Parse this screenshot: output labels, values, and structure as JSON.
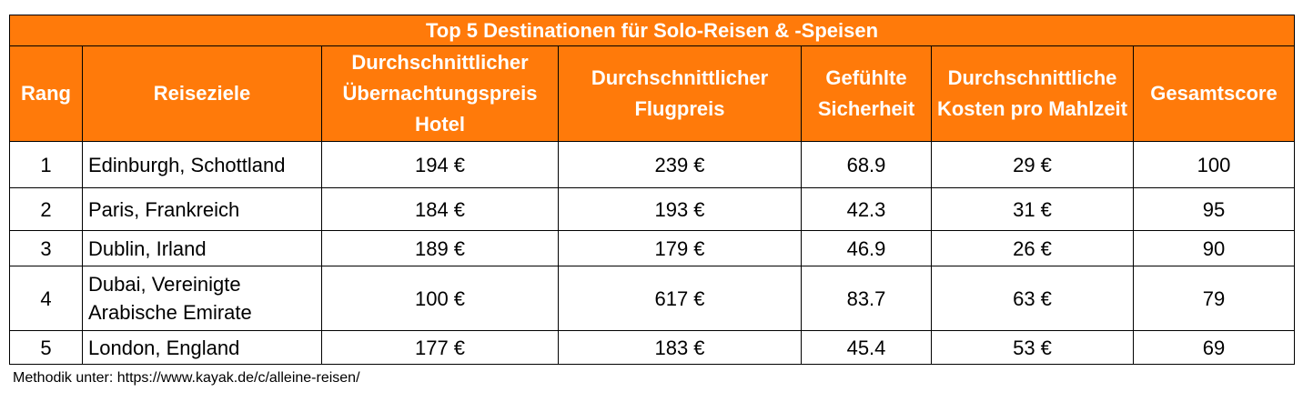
{
  "chart_data": {
    "type": "table",
    "title": "Top 5 Destinationen für Solo-Reisen & -Speisen",
    "columns": [
      "Rang",
      "Reiseziele",
      "Durchschnittlicher Übernachtungspreis Hotel",
      "Durchschnittlicher Flugpreis",
      "Gefühlte Sicherheit",
      "Durchschnittliche Kosten pro Mahlzeit",
      "Gesamtscore"
    ],
    "rows": [
      [
        "1",
        "Edinburgh, Schottland",
        "194 €",
        "239 €",
        "68.9",
        "29 €",
        "100"
      ],
      [
        "2",
        "Paris, Frankreich",
        "184 €",
        "193 €",
        "42.3",
        "31 €",
        "95"
      ],
      [
        "3",
        "Dublin, Irland",
        "189 €",
        "179 €",
        "46.9",
        "26 €",
        "90"
      ],
      [
        "4",
        "Dubai, Vereinigte Arabische Emirate",
        "100 €",
        "617 €",
        "83.7",
        "63 €",
        "79"
      ],
      [
        "5",
        "London, England",
        "177 €",
        "183 €",
        "45.4",
        "53 €",
        "69"
      ]
    ],
    "header_color": "#FF7A0A",
    "header_text_color": "#FFFFFF"
  },
  "footnote": "Methodik unter: https://www.kayak.de/c/alleine-reisen/"
}
